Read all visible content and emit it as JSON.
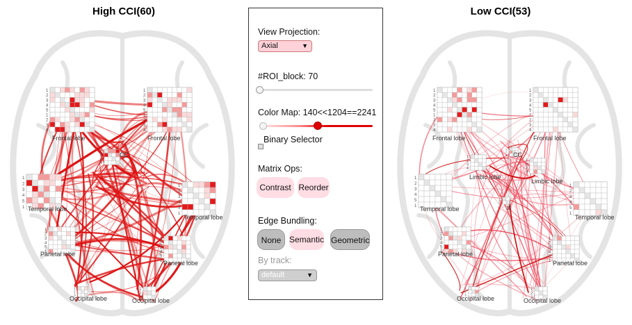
{
  "left_panel": {
    "title": "High CCI(60)",
    "edge_color": "#dd1111",
    "labels": {
      "frontal_left": "Frontal lobe",
      "frontal_right": "Frontal lobe",
      "temporal_left": "Temporal lobe",
      "temporal_right": "Temporal lobe",
      "parietal_left": "Parietal lobe",
      "parietal_right": "Parietal lobe",
      "occipital_left": "Occipital lobe",
      "occipital_right": "Occipital lobe",
      "center_small": "CC"
    }
  },
  "right_panel": {
    "title": "Low CCI(53)",
    "edge_color": "#ee5566",
    "labels": {
      "frontal_left": "Frontal lobe",
      "frontal_right": "Frontal lobe",
      "temporal_left": "Temporal lobe",
      "temporal_right": "Temporal lobe",
      "parietal_left": "Parietal lobe",
      "parietal_right": "Parietal lobe",
      "occipital_left": "Occipital lobe",
      "occipital_right": "Occipital lobe",
      "limbic_left": "Limbic lobe",
      "limbic_right": "Limbic lobe",
      "center_small": "CC",
      "center_it": "it"
    }
  },
  "controls": {
    "view_projection_label": "View Projection:",
    "view_projection_value": "Axial",
    "roi_block_label": "#ROI_block: 70",
    "roi_block_value": 0.0,
    "color_map_label": "Color Map: 140<<1204==2241",
    "color_map_low": 0.0,
    "color_map_high": 0.48,
    "binary_selector_label": "Binary Selector",
    "matrix_ops_label": "Matrix Ops:",
    "contrast_label": "Contrast",
    "reorder_label": "Reorder",
    "edge_bundling_label": "Edge Bundling:",
    "none_label": "None",
    "semantic_label": "Semantic",
    "geometric_label": "Geometric",
    "by_track_label": "By track:",
    "by_track_value": "default",
    "colors": {
      "accent_red": "#e00000",
      "pink_button": "#ffdde4",
      "gray_button": "#bdbdbd"
    },
    "icons": {
      "dropdown_arrow": "triangle-down"
    }
  }
}
